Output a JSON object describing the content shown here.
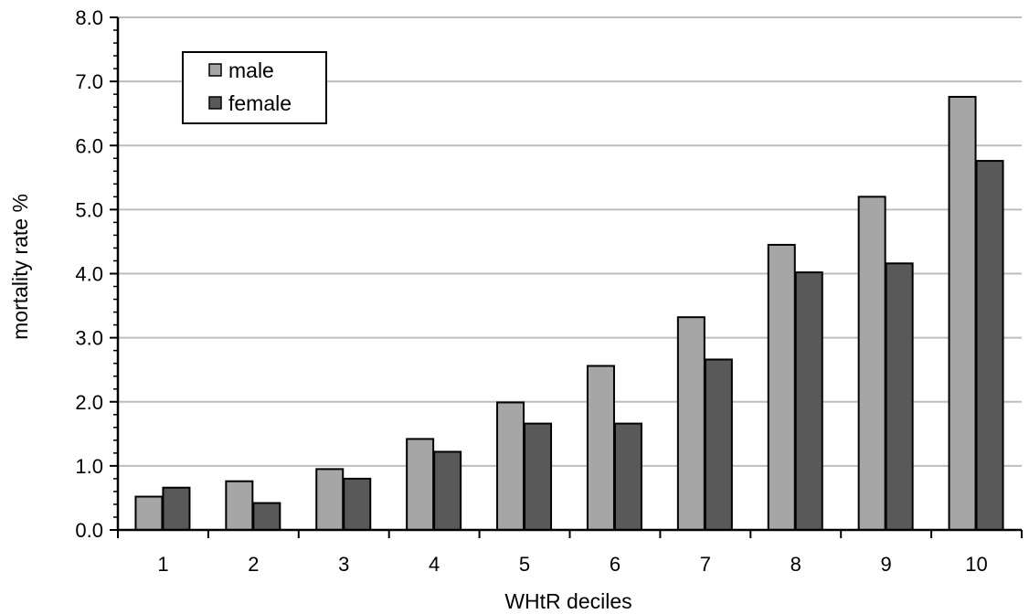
{
  "chart_data": {
    "type": "bar",
    "title": "",
    "xlabel": "WHtR deciles",
    "ylabel": "mortality rate %",
    "categories": [
      "1",
      "2",
      "3",
      "4",
      "5",
      "6",
      "7",
      "8",
      "9",
      "10"
    ],
    "series": [
      {
        "name": "male",
        "color": "#a6a6a6",
        "values": [
          0.52,
          0.76,
          0.95,
          1.42,
          1.99,
          2.56,
          3.32,
          4.45,
          5.2,
          6.76
        ]
      },
      {
        "name": "female",
        "color": "#595959",
        "values": [
          0.66,
          0.42,
          0.8,
          1.22,
          1.66,
          1.66,
          2.66,
          4.02,
          4.16,
          5.76
        ]
      }
    ],
    "ylim": [
      0,
      8
    ],
    "yticks": [
      "0.0",
      "1.0",
      "2.0",
      "3.0",
      "4.0",
      "5.0",
      "6.0",
      "7.0",
      "8.0"
    ],
    "grid": true,
    "legend_position": "top-left"
  }
}
